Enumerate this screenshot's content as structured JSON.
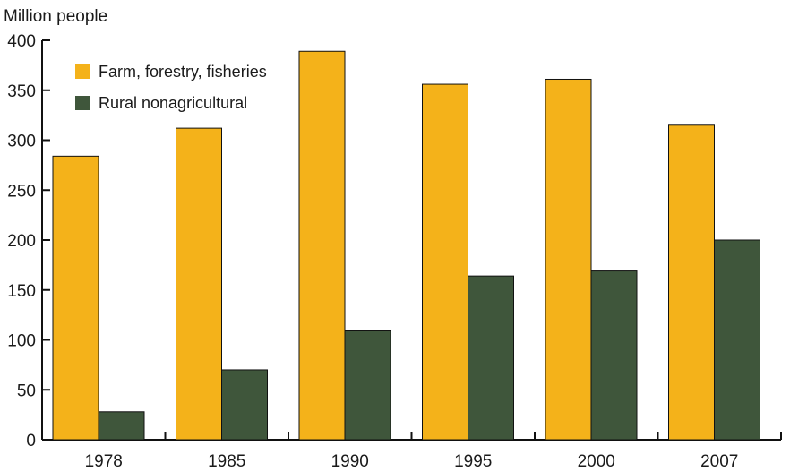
{
  "chart_data": {
    "type": "bar",
    "title": "",
    "ylabel": "Million people",
    "xlabel": "",
    "categories": [
      "1978",
      "1985",
      "1990",
      "1995",
      "2000",
      "2007"
    ],
    "series": [
      {
        "name": "Farm, forestry, fisheries",
        "values": [
          284,
          312,
          389,
          356,
          361,
          315
        ],
        "color": "#F4B21A"
      },
      {
        "name": "Rural nonagricultural",
        "values": [
          28,
          70,
          109,
          164,
          169,
          200
        ],
        "color": "#3F563B"
      }
    ],
    "ylim": [
      0,
      400
    ],
    "yticks": [
      "0",
      "50",
      "100",
      "150",
      "200",
      "250",
      "300",
      "350",
      "400"
    ],
    "grid": false,
    "legend_position": "top-left"
  }
}
